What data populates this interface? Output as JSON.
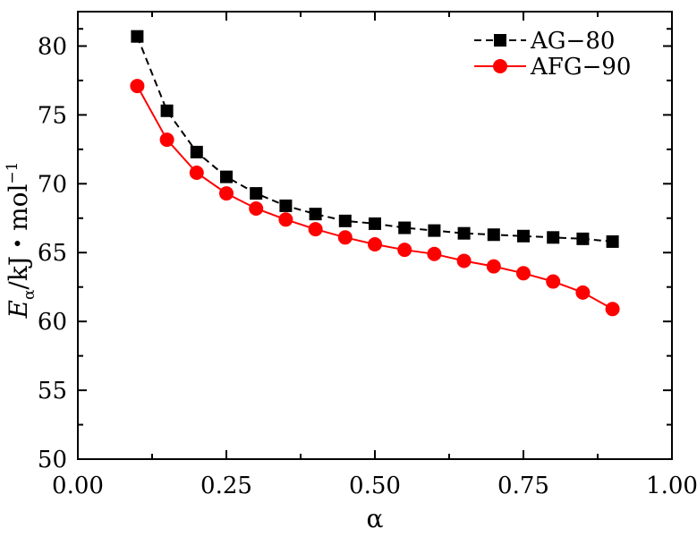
{
  "chart_data": {
    "type": "line",
    "xlabel": "α",
    "ylabel": {
      "main": "E",
      "subscript": "α",
      "rest": "/kJ・mol",
      "superscript": "−1"
    },
    "xlim": [
      0,
      1
    ],
    "ylim": [
      50,
      82.5
    ],
    "xticks": [
      0.0,
      0.25,
      0.5,
      0.75,
      1.0
    ],
    "xtick_labels": [
      "0.00",
      "0.25",
      "0.50",
      "0.75",
      "1.00"
    ],
    "yticks": [
      50,
      55,
      60,
      65,
      70,
      75,
      80
    ],
    "ytick_labels": [
      "50",
      "55",
      "60",
      "65",
      "70",
      "75",
      "80"
    ],
    "grid": false,
    "legend_position": "top-right",
    "x": [
      0.1,
      0.15,
      0.2,
      0.25,
      0.3,
      0.35,
      0.4,
      0.45,
      0.5,
      0.55,
      0.6,
      0.65,
      0.7,
      0.75,
      0.8,
      0.85,
      0.9
    ],
    "series": [
      {
        "name": "AG−80",
        "color": "#000000",
        "marker": "square",
        "line": "dashed",
        "values": [
          80.7,
          75.3,
          72.3,
          70.5,
          69.3,
          68.4,
          67.8,
          67.3,
          67.1,
          66.8,
          66.6,
          66.4,
          66.3,
          66.2,
          66.1,
          66.0,
          65.8
        ]
      },
      {
        "name": "AFG−90",
        "color": "#ff0000",
        "marker": "circle",
        "line": "solid",
        "values": [
          77.1,
          73.2,
          70.8,
          69.3,
          68.2,
          67.4,
          66.7,
          66.1,
          65.6,
          65.2,
          64.9,
          64.4,
          64.0,
          63.5,
          62.9,
          62.1,
          60.9
        ]
      }
    ]
  }
}
